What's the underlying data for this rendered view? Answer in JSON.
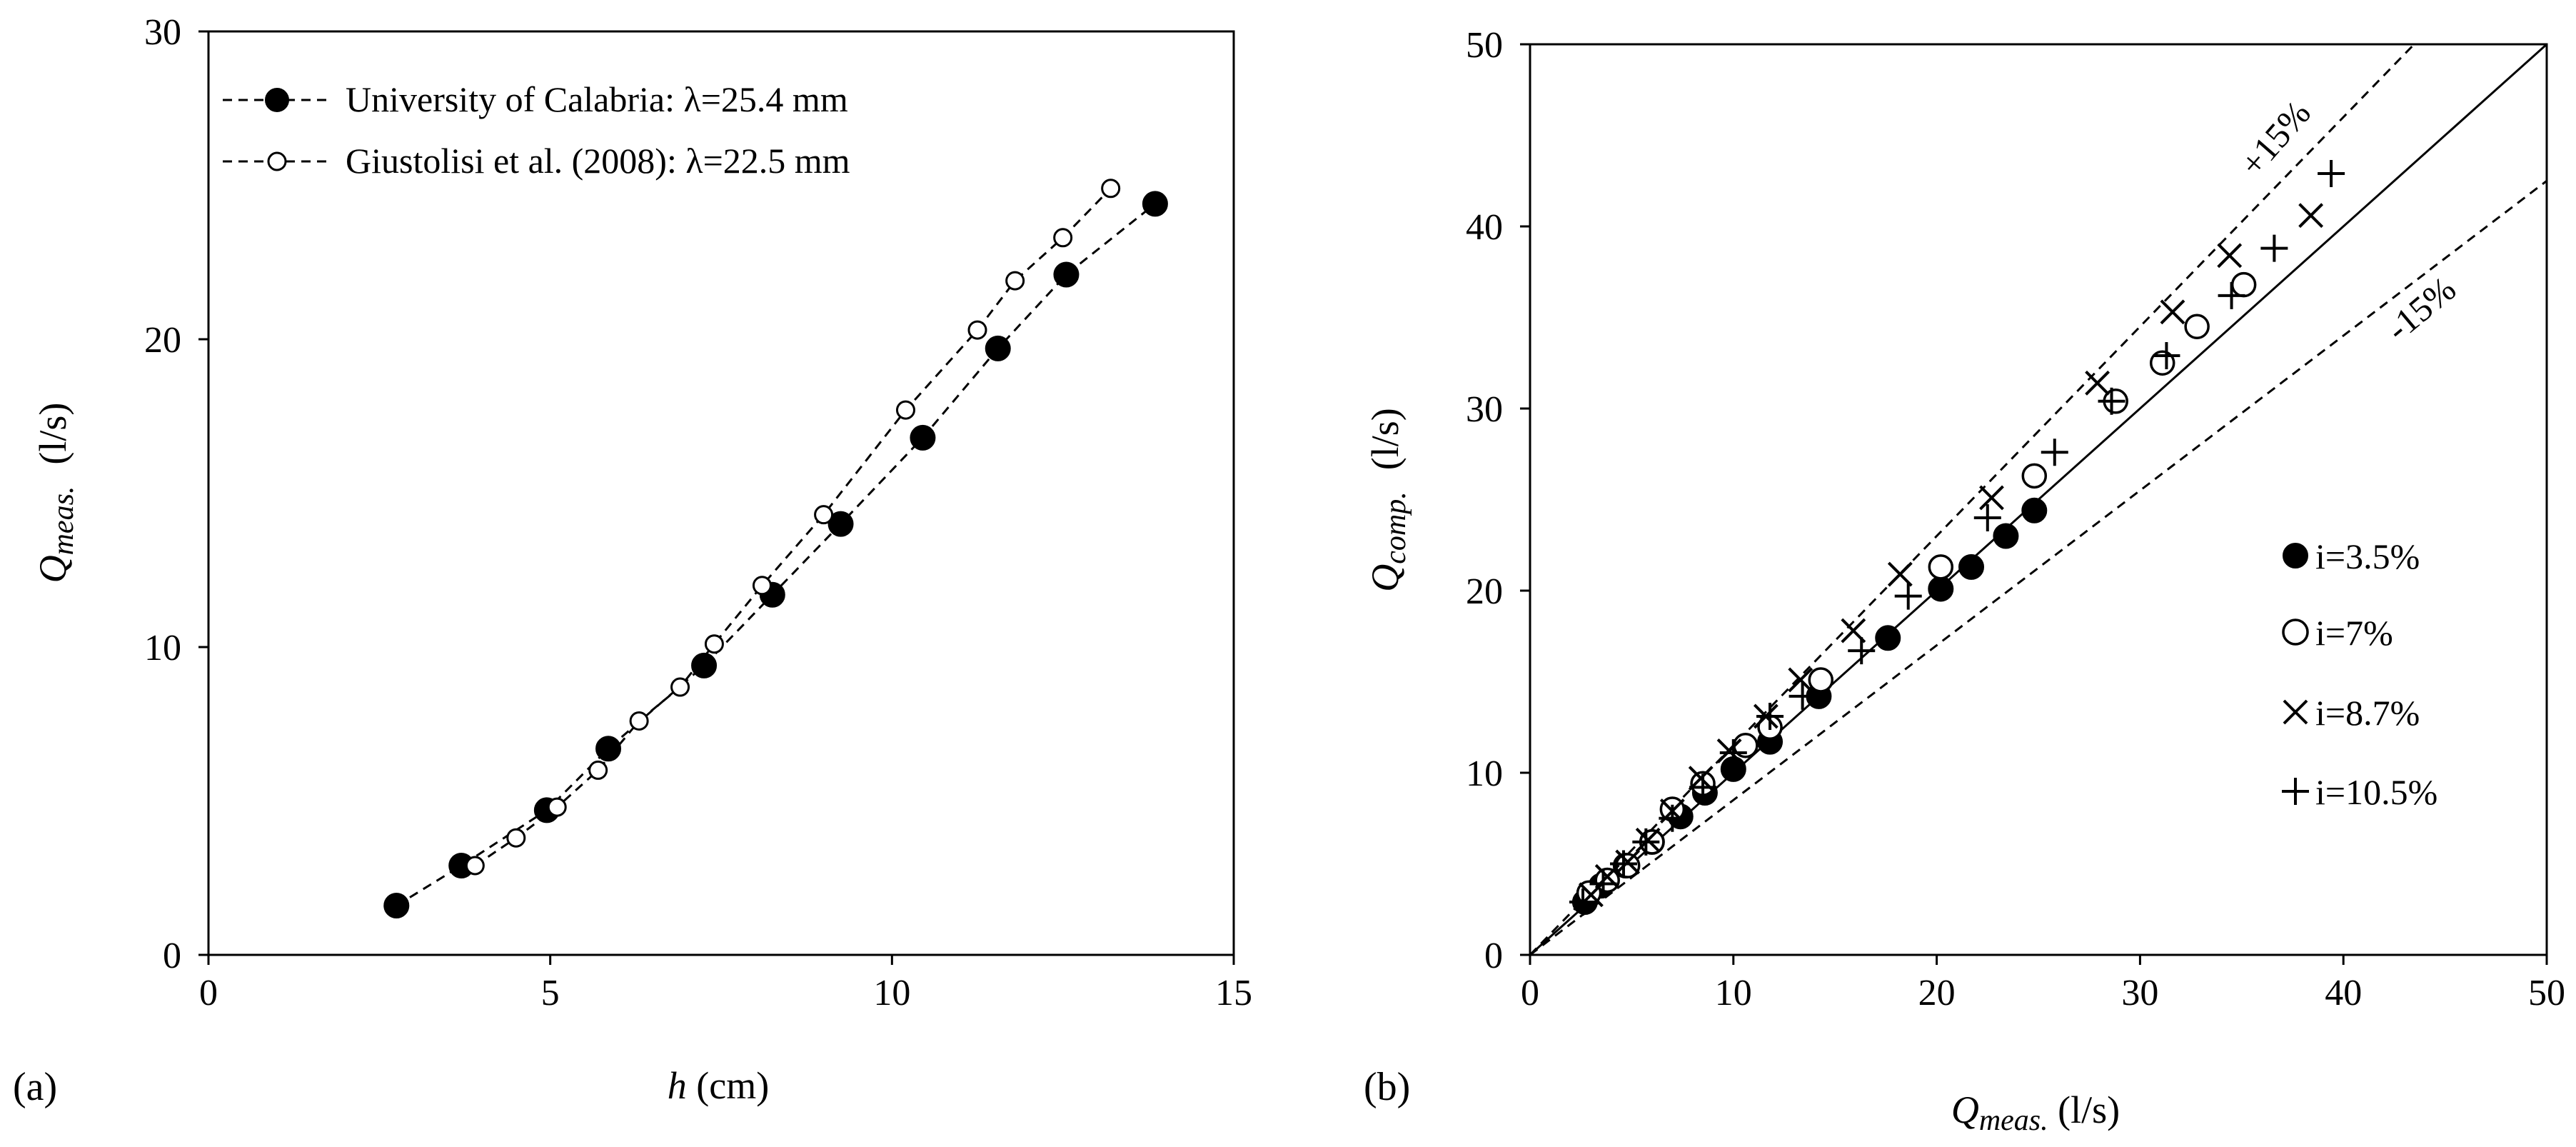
{
  "panels": {
    "a": {
      "label": "(a)",
      "xlabel_var": "h",
      "xlabel_unit": " (cm)",
      "ylabel_var": "Q",
      "ylabel_sub": "meas.",
      "ylabel_unit": "(l/s)",
      "legend": [
        "University of Calabria: λ=25.4 mm",
        "Giustolisi  et al. (2008): λ=22.5 mm"
      ]
    },
    "b": {
      "label": "(b)",
      "xlabel_var": "Q",
      "xlabel_sub": "meas.",
      "xlabel_unit": " (l/s)",
      "ylabel_var": "Q",
      "ylabel_sub": "comp.",
      "ylabel_unit": "(l/s)",
      "upper_band_label": "+15%",
      "lower_band_label": "-15%",
      "legend": [
        "i=3.5%",
        "i=7%",
        "i=8.7%",
        "i=10.5%"
      ]
    }
  },
  "chart_data": [
    {
      "type": "line",
      "panel": "a",
      "title": "",
      "xlabel": "h (cm)",
      "ylabel": "Qmeas. (l/s)",
      "xlim": [
        0,
        15
      ],
      "ylim": [
        0,
        30
      ],
      "xticks": [
        0,
        5,
        10,
        15
      ],
      "yticks": [
        0,
        10,
        20,
        30
      ],
      "grid": false,
      "legend_position": "top-left",
      "series": [
        {
          "name": "University of Calabria: λ=25.4 mm",
          "marker": "filled-circle",
          "line": "dashed",
          "x": [
            2.75,
            3.7,
            4.95,
            5.85,
            7.25,
            8.25,
            9.25,
            10.45,
            11.55,
            12.55,
            13.85
          ],
          "y": [
            1.6,
            2.9,
            4.7,
            6.7,
            9.4,
            11.7,
            14.0,
            16.8,
            19.7,
            22.1,
            24.4
          ]
        },
        {
          "name": "Giustolisi  et al. (2008): λ=22.5 mm",
          "marker": "open-circle",
          "line": "dashed",
          "x": [
            3.9,
            4.5,
            5.1,
            5.7,
            6.3,
            6.9,
            7.4,
            8.1,
            9.0,
            10.2,
            11.25,
            11.8,
            12.5,
            13.2
          ],
          "y": [
            2.9,
            3.8,
            4.8,
            6.0,
            7.6,
            8.7,
            10.1,
            12.0,
            14.3,
            17.7,
            20.3,
            21.9,
            23.3,
            24.9
          ]
        }
      ]
    },
    {
      "type": "scatter",
      "panel": "b",
      "title": "",
      "xlabel": "Qmeas. (l/s)",
      "ylabel": "Qcomp. (l/s)",
      "xlim": [
        0,
        50
      ],
      "ylim": [
        0,
        50
      ],
      "xticks": [
        0,
        10,
        20,
        30,
        40,
        50
      ],
      "yticks": [
        0,
        10,
        20,
        30,
        40,
        50
      ],
      "grid": false,
      "legend_position": "right",
      "reference_lines": [
        {
          "name": "1:1",
          "slope": 1.0,
          "style": "solid"
        },
        {
          "name": "+15%",
          "slope": 1.15,
          "style": "dashed"
        },
        {
          "name": "-15%",
          "slope": 0.85,
          "style": "dashed"
        }
      ],
      "series": [
        {
          "name": "i=3.5%",
          "marker": "filled-circle",
          "x": [
            2.7,
            3.5,
            4.7,
            6.0,
            7.4,
            8.6,
            10.0,
            11.8,
            14.2,
            17.6,
            20.2,
            21.7,
            23.4,
            24.8
          ],
          "y": [
            2.9,
            3.8,
            4.9,
            6.2,
            7.6,
            8.9,
            10.2,
            11.7,
            14.2,
            17.4,
            20.1,
            21.3,
            23.0,
            24.4
          ]
        },
        {
          "name": "i=7%",
          "marker": "open-circle",
          "x": [
            2.9,
            3.8,
            4.8,
            6.0,
            7.0,
            8.5,
            10.6,
            11.8,
            14.3,
            20.2,
            24.8,
            28.8,
            31.1,
            32.8,
            35.1
          ],
          "y": [
            3.4,
            4.1,
            4.9,
            6.2,
            8.0,
            9.4,
            11.5,
            12.5,
            15.1,
            21.3,
            26.3,
            30.4,
            32.5,
            34.5,
            36.8
          ]
        },
        {
          "name": "i=8.7%",
          "marker": "x",
          "x": [
            3.0,
            3.8,
            4.8,
            5.8,
            7.0,
            8.4,
            9.8,
            11.6,
            13.3,
            15.9,
            18.2,
            22.7,
            27.9,
            31.6,
            34.4,
            38.4
          ],
          "y": [
            3.3,
            4.3,
            5.1,
            6.3,
            7.9,
            9.7,
            11.2,
            13.1,
            15.1,
            17.8,
            20.9,
            25.1,
            31.4,
            35.3,
            38.4,
            40.6
          ]
        },
        {
          "name": "i=10.5%",
          "marker": "plus",
          "x": [
            2.6,
            3.6,
            4.6,
            5.7,
            7.0,
            8.5,
            10.0,
            11.8,
            13.4,
            16.3,
            18.6,
            22.5,
            25.8,
            28.6,
            31.3,
            34.5,
            36.6,
            39.4
          ],
          "y": [
            2.9,
            3.9,
            5.0,
            6.2,
            7.5,
            9.2,
            11.1,
            13.1,
            14.2,
            16.7,
            19.7,
            24.0,
            27.6,
            30.4,
            32.9,
            36.2,
            38.8,
            42.9
          ]
        }
      ]
    }
  ]
}
